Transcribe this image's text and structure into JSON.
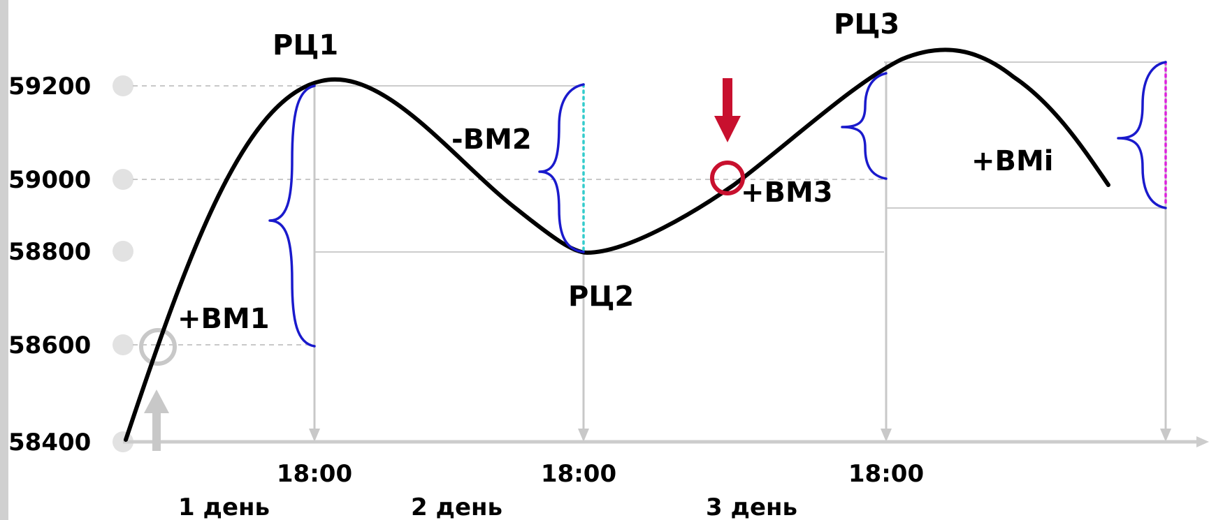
{
  "y_axis": {
    "ticks": [
      "59200",
      "59000",
      "58800",
      "58600",
      "58400"
    ]
  },
  "x_axis": {
    "time_labels": [
      "18:00",
      "18:00",
      "18:00"
    ],
    "day_labels": [
      "1 день",
      "2 день",
      "3 день"
    ]
  },
  "labels": {
    "rc1": "РЦ1",
    "rc2": "РЦ2",
    "rc3": "РЦ3",
    "vm1": "+ВМ1",
    "vm2": "-ВМ2",
    "vm3": "+ВМ3",
    "vmi": "+ВМi"
  },
  "colors": {
    "curve": "#000000",
    "brace": "#1a1acc",
    "guide": "#cccccc",
    "marker_entry": "#c8102e",
    "marker_start": "#c8c8c8",
    "vm2_dotted": "#33cccc",
    "vmi_dotted": "#dd22dd",
    "left_bar": "#d0d0d0"
  }
}
